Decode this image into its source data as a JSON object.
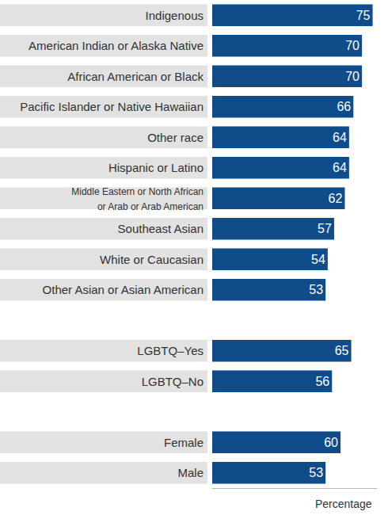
{
  "chart_data": {
    "type": "bar",
    "orientation": "horizontal",
    "categories": [
      "Indigenous",
      "American Indian or Alaska Native",
      "African American or Black",
      "Pacific Islander or Native Hawaiian",
      "Other race",
      "Hispanic or Latino",
      "Middle Eastern or North African\nor Arab or Arab American",
      "Southeast Asian",
      "White or Caucasian",
      "Other Asian or Asian American",
      null,
      "LGBTQ–Yes",
      "LGBTQ–No",
      null,
      "Female",
      "Male"
    ],
    "values": [
      75,
      70,
      70,
      66,
      64,
      64,
      62,
      57,
      54,
      53,
      null,
      65,
      56,
      null,
      60,
      53
    ],
    "color": "#0f4c89",
    "x_label": "Percentage",
    "xlim": [
      0,
      77
    ],
    "data_labels": true,
    "tick_labels": "y",
    "grid": false
  }
}
